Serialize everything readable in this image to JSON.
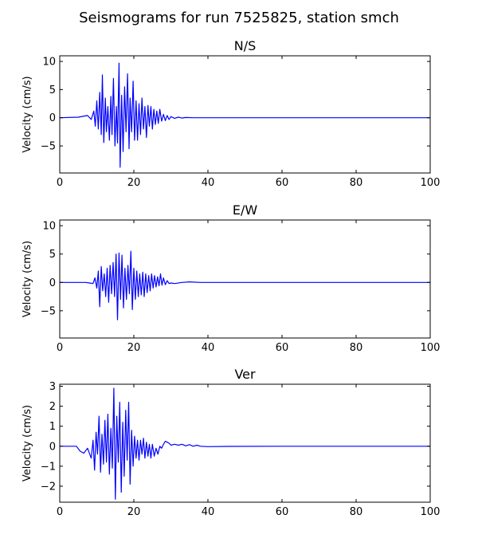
{
  "title": "Seismograms for run 7525825, station smch",
  "chart_data": [
    {
      "type": "line",
      "title": "N/S",
      "ylabel": "Velocity (cm/s)",
      "xlim": [
        0,
        100
      ],
      "ylim": [
        -9.8,
        11
      ],
      "xticks": [
        0,
        20,
        40,
        60,
        80,
        100
      ],
      "yticks": [
        -5,
        0,
        5,
        10
      ],
      "color": "#0000ff",
      "x": [
        0,
        5,
        7.5,
        8.5,
        9.2,
        9.6,
        10.0,
        10.4,
        10.8,
        11.2,
        11.5,
        11.9,
        12.3,
        12.6,
        13.0,
        13.4,
        13.8,
        14.1,
        14.5,
        14.9,
        15.3,
        15.6,
        16.0,
        16.3,
        16.7,
        17.1,
        17.5,
        17.9,
        18.3,
        18.7,
        19.0,
        19.4,
        19.8,
        20.2,
        20.6,
        21.0,
        21.4,
        21.8,
        22.2,
        22.6,
        23.0,
        23.4,
        23.8,
        24.2,
        24.6,
        25.0,
        25.4,
        25.8,
        26.2,
        26.6,
        27.0,
        27.5,
        28.0,
        28.5,
        29.0,
        29.5,
        30.0,
        31.0,
        32.0,
        33.0,
        34.0,
        36.0,
        40.0,
        50.0,
        60.0,
        80.0,
        100.0
      ],
      "values": [
        0,
        0.1,
        0.4,
        -0.3,
        1.2,
        -1.5,
        3.0,
        -2.0,
        4.5,
        -3.0,
        7.6,
        -4.4,
        3.5,
        -2.5,
        2.0,
        -4.0,
        3.8,
        -3.0,
        7.0,
        -5.0,
        2.0,
        -4.5,
        9.7,
        -8.8,
        4.0,
        -6.0,
        5.5,
        -2.5,
        7.8,
        -5.5,
        3.5,
        -2.5,
        6.5,
        -4.0,
        3.0,
        -4.0,
        2.5,
        -3.0,
        3.5,
        -2.0,
        2.0,
        -3.5,
        2.2,
        -1.5,
        2.0,
        -2.0,
        1.5,
        -1.2,
        1.2,
        -1.0,
        1.5,
        -0.6,
        0.6,
        -0.5,
        0.4,
        -0.3,
        0.2,
        -0.1,
        0.1,
        -0.05,
        0.05,
        0,
        0,
        0,
        0,
        0,
        0
      ]
    },
    {
      "type": "line",
      "title": "E/W",
      "ylabel": "Velocity (cm/s)",
      "xlim": [
        0,
        100
      ],
      "ylim": [
        -9.8,
        11
      ],
      "xticks": [
        0,
        20,
        40,
        60,
        80,
        100
      ],
      "yticks": [
        -5,
        0,
        5,
        10
      ],
      "color": "#0000ff",
      "x": [
        0,
        7.0,
        8.0,
        9.0,
        9.5,
        10.0,
        10.4,
        10.8,
        11.2,
        11.6,
        12.0,
        12.4,
        12.8,
        13.2,
        13.6,
        14.0,
        14.4,
        14.8,
        15.2,
        15.6,
        16.0,
        16.4,
        16.8,
        17.2,
        17.6,
        18.0,
        18.4,
        18.8,
        19.2,
        19.6,
        20.0,
        20.4,
        20.8,
        21.2,
        21.6,
        22.0,
        22.4,
        22.8,
        23.2,
        23.6,
        24.0,
        24.4,
        24.8,
        25.2,
        25.6,
        26.0,
        26.4,
        26.8,
        27.2,
        27.6,
        28.0,
        28.5,
        29.0,
        29.5,
        30.0,
        31.0,
        33.0,
        35.0,
        38.0,
        45.0,
        60.0,
        80.0,
        100.0
      ],
      "values": [
        0,
        0,
        -0.1,
        -0.2,
        0.8,
        -1.0,
        2.0,
        -4.3,
        2.8,
        -1.5,
        1.5,
        -2.5,
        2.5,
        -3.5,
        3.0,
        -2.0,
        3.5,
        -2.5,
        5.0,
        -6.6,
        5.2,
        -3.0,
        4.8,
        -4.5,
        2.5,
        -3.0,
        3.0,
        -2.0,
        5.5,
        -4.8,
        2.5,
        -3.0,
        2.0,
        -2.5,
        1.5,
        -2.2,
        1.8,
        -2.5,
        1.5,
        -1.8,
        1.2,
        -1.5,
        1.5,
        -1.0,
        1.2,
        -0.8,
        1.0,
        -0.6,
        1.5,
        -0.5,
        0.8,
        -0.4,
        0.3,
        -0.2,
        -0.1,
        -0.2,
        0,
        0.1,
        0,
        0,
        0,
        0,
        0
      ]
    },
    {
      "type": "line",
      "title": "Ver",
      "ylabel": "Velocity (cm/s)",
      "xlim": [
        0,
        100
      ],
      "ylim": [
        -2.8,
        3.1
      ],
      "xticks": [
        0,
        20,
        40,
        60,
        80,
        100
      ],
      "yticks": [
        -2,
        -1,
        0,
        1,
        2,
        3
      ],
      "color": "#0000ff",
      "x": [
        0,
        4.5,
        5.5,
        6.5,
        7.5,
        8.5,
        9.0,
        9.4,
        9.8,
        10.2,
        10.6,
        11.0,
        11.4,
        11.8,
        12.2,
        12.6,
        13.0,
        13.4,
        13.8,
        14.2,
        14.6,
        15.0,
        15.4,
        15.8,
        16.2,
        16.6,
        17.0,
        17.4,
        17.8,
        18.2,
        18.6,
        19.0,
        19.4,
        19.8,
        20.2,
        20.6,
        21.0,
        21.4,
        21.8,
        22.2,
        22.6,
        23.0,
        23.4,
        23.8,
        24.2,
        24.6,
        25.0,
        25.5,
        26.0,
        26.5,
        27.0,
        27.5,
        28.0,
        28.5,
        29.0,
        29.5,
        30.0,
        31.0,
        32.0,
        33.0,
        34.0,
        35.0,
        36.0,
        37.0,
        38.0,
        40.0,
        45.0,
        60.0,
        80.0,
        100.0
      ],
      "values": [
        0,
        0,
        -0.25,
        -0.35,
        -0.1,
        -0.6,
        0.3,
        -1.2,
        0.7,
        -0.4,
        1.5,
        -1.3,
        0.6,
        -0.9,
        1.3,
        -0.8,
        1.6,
        -1.4,
        0.9,
        -1.1,
        2.9,
        -2.65,
        1.5,
        -0.8,
        2.2,
        -2.3,
        1.2,
        -1.5,
        1.8,
        -0.7,
        2.2,
        -1.9,
        0.8,
        -1.0,
        0.5,
        -0.6,
        0.3,
        -0.7,
        0.3,
        -0.4,
        0.4,
        -0.6,
        0.2,
        -0.5,
        0.1,
        -0.6,
        0.1,
        -0.5,
        -0.1,
        -0.4,
        0.0,
        -0.1,
        0.1,
        0.25,
        0.2,
        0.15,
        0.05,
        0.1,
        0.05,
        0.1,
        0.02,
        0.08,
        0.0,
        0.05,
        0.0,
        -0.02,
        -0.01,
        0,
        0,
        0
      ]
    }
  ]
}
